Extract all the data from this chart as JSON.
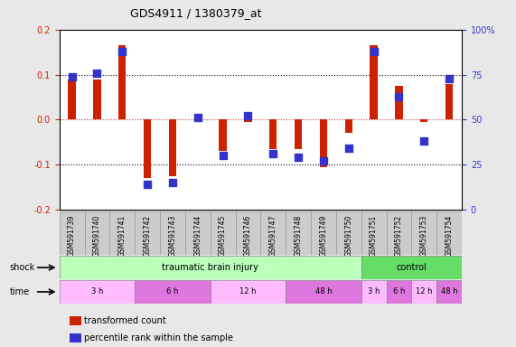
{
  "title": "GDS4911 / 1380379_at",
  "samples": [
    "GSM591739",
    "GSM591740",
    "GSM591741",
    "GSM591742",
    "GSM591743",
    "GSM591744",
    "GSM591745",
    "GSM591746",
    "GSM591747",
    "GSM591748",
    "GSM591749",
    "GSM591750",
    "GSM591751",
    "GSM591752",
    "GSM591753",
    "GSM591754"
  ],
  "red_values": [
    0.09,
    0.09,
    0.165,
    -0.13,
    -0.125,
    -0.005,
    -0.07,
    -0.005,
    -0.065,
    -0.065,
    -0.105,
    -0.03,
    0.165,
    0.075,
    -0.005,
    0.08
  ],
  "blue_pct": [
    74,
    76,
    88,
    14,
    15,
    51,
    30,
    52,
    31,
    29,
    27,
    34,
    88,
    63,
    38,
    73
  ],
  "ylim_left": [
    -0.2,
    0.2
  ],
  "ylim_right": [
    0,
    100
  ],
  "yticks_left": [
    -0.2,
    -0.1,
    0.0,
    0.1,
    0.2
  ],
  "yticks_right": [
    0,
    25,
    50,
    75,
    100
  ],
  "ytick_labels_right": [
    "0",
    "25",
    "50",
    "75",
    "100%"
  ],
  "red_color": "#cc2200",
  "blue_color": "#3333cc",
  "zero_line_color": "#cc3333",
  "dotted_line_color": "#000000",
  "shock_label": "shock",
  "time_label": "time",
  "shock_groups": [
    {
      "label": "traumatic brain injury",
      "start": 0,
      "end": 12,
      "color": "#bbffbb"
    },
    {
      "label": "control",
      "start": 12,
      "end": 16,
      "color": "#66dd66"
    }
  ],
  "time_groups": [
    {
      "label": "3 h",
      "start": 0,
      "end": 3,
      "color": "#ffbbff"
    },
    {
      "label": "6 h",
      "start": 3,
      "end": 6,
      "color": "#dd77dd"
    },
    {
      "label": "12 h",
      "start": 6,
      "end": 9,
      "color": "#ffbbff"
    },
    {
      "label": "48 h",
      "start": 9,
      "end": 12,
      "color": "#dd77dd"
    },
    {
      "label": "3 h",
      "start": 12,
      "end": 13,
      "color": "#ffbbff"
    },
    {
      "label": "6 h",
      "start": 13,
      "end": 14,
      "color": "#dd77dd"
    },
    {
      "label": "12 h",
      "start": 14,
      "end": 15,
      "color": "#ffbbff"
    },
    {
      "label": "48 h",
      "start": 15,
      "end": 16,
      "color": "#dd77dd"
    }
  ],
  "legend_red": "transformed count",
  "legend_blue": "percentile rank within the sample",
  "background_color": "#e8e8e8",
  "plot_bg_color": "#ffffff",
  "label_bg_color": "#cccccc"
}
